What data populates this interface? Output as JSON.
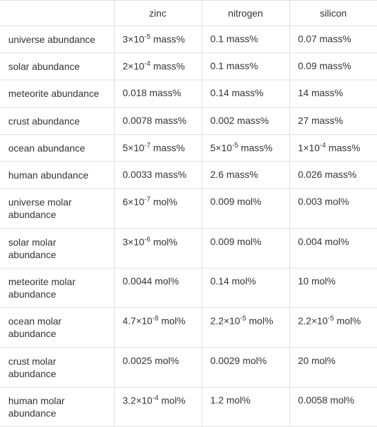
{
  "table": {
    "background_color": "#ffffff",
    "border_color": "#e0e0e0",
    "text_color": "#333333",
    "font_size": 14,
    "columns": [
      "",
      "zinc",
      "nitrogen",
      "silicon"
    ],
    "rows": [
      {
        "label": "universe abundance",
        "zinc": {
          "base": "3×10",
          "exp": "-5",
          "unit": " mass%"
        },
        "nitrogen": {
          "base": "0.1 mass%",
          "exp": null,
          "unit": ""
        },
        "silicon": {
          "base": "0.07 mass%",
          "exp": null,
          "unit": ""
        }
      },
      {
        "label": "solar abundance",
        "zinc": {
          "base": "2×10",
          "exp": "-4",
          "unit": " mass%"
        },
        "nitrogen": {
          "base": "0.1 mass%",
          "exp": null,
          "unit": ""
        },
        "silicon": {
          "base": "0.09 mass%",
          "exp": null,
          "unit": ""
        }
      },
      {
        "label": "meteorite abundance",
        "zinc": {
          "base": "0.018 mass%",
          "exp": null,
          "unit": ""
        },
        "nitrogen": {
          "base": "0.14 mass%",
          "exp": null,
          "unit": ""
        },
        "silicon": {
          "base": "14 mass%",
          "exp": null,
          "unit": ""
        }
      },
      {
        "label": "crust abundance",
        "zinc": {
          "base": "0.0078 mass%",
          "exp": null,
          "unit": ""
        },
        "nitrogen": {
          "base": "0.002 mass%",
          "exp": null,
          "unit": ""
        },
        "silicon": {
          "base": "27 mass%",
          "exp": null,
          "unit": ""
        }
      },
      {
        "label": "ocean abundance",
        "zinc": {
          "base": "5×10",
          "exp": "-7",
          "unit": " mass%"
        },
        "nitrogen": {
          "base": "5×10",
          "exp": "-5",
          "unit": " mass%"
        },
        "silicon": {
          "base": "1×10",
          "exp": "-4",
          "unit": " mass%"
        }
      },
      {
        "label": "human abundance",
        "zinc": {
          "base": "0.0033 mass%",
          "exp": null,
          "unit": ""
        },
        "nitrogen": {
          "base": "2.6 mass%",
          "exp": null,
          "unit": ""
        },
        "silicon": {
          "base": "0.026 mass%",
          "exp": null,
          "unit": ""
        }
      },
      {
        "label": "universe molar abundance",
        "zinc": {
          "base": "6×10",
          "exp": "-7",
          "unit": " mol%"
        },
        "nitrogen": {
          "base": "0.009 mol%",
          "exp": null,
          "unit": ""
        },
        "silicon": {
          "base": "0.003 mol%",
          "exp": null,
          "unit": ""
        }
      },
      {
        "label": "solar molar abundance",
        "zinc": {
          "base": "3×10",
          "exp": "-6",
          "unit": " mol%"
        },
        "nitrogen": {
          "base": "0.009 mol%",
          "exp": null,
          "unit": ""
        },
        "silicon": {
          "base": "0.004 mol%",
          "exp": null,
          "unit": ""
        }
      },
      {
        "label": "meteorite molar abundance",
        "zinc": {
          "base": "0.0044 mol%",
          "exp": null,
          "unit": ""
        },
        "nitrogen": {
          "base": "0.14 mol%",
          "exp": null,
          "unit": ""
        },
        "silicon": {
          "base": "10 mol%",
          "exp": null,
          "unit": ""
        }
      },
      {
        "label": "ocean molar abundance",
        "zinc": {
          "base": "4.7×10",
          "exp": "-8",
          "unit": " mol%"
        },
        "nitrogen": {
          "base": "2.2×10",
          "exp": "-5",
          "unit": " mol%"
        },
        "silicon": {
          "base": "2.2×10",
          "exp": "-5",
          "unit": " mol%"
        }
      },
      {
        "label": "crust molar abundance",
        "zinc": {
          "base": "0.0025 mol%",
          "exp": null,
          "unit": ""
        },
        "nitrogen": {
          "base": "0.0029 mol%",
          "exp": null,
          "unit": ""
        },
        "silicon": {
          "base": "20 mol%",
          "exp": null,
          "unit": ""
        }
      },
      {
        "label": "human molar abundance",
        "zinc": {
          "base": "3.2×10",
          "exp": "-4",
          "unit": " mol%"
        },
        "nitrogen": {
          "base": "1.2 mol%",
          "exp": null,
          "unit": ""
        },
        "silicon": {
          "base": "0.0058 mol%",
          "exp": null,
          "unit": ""
        }
      }
    ]
  }
}
